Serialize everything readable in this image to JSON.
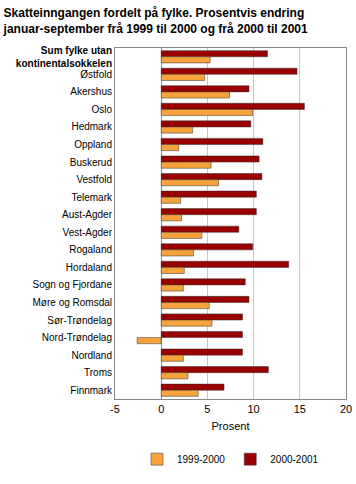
{
  "chart_data": {
    "type": "bar",
    "orientation": "horizontal",
    "title": "Skatteinngangen fordelt på fylke. Prosentvis endring januar-september frå 1999 til 2000 og frå 2000 til 2001",
    "x_label": "Prosent",
    "categories": [
      "Sum fylke utan kontinentalsokkelen",
      "Østfold",
      "Akershus",
      "Oslo",
      "Hedmark",
      "Oppland",
      "Buskerud",
      "Vestfold",
      "Telemark",
      "Aust-Agder",
      "Vest-Agder",
      "Rogaland",
      "Hordaland",
      "Sogn og Fjordane",
      "Møre og Romsdal",
      "Sør-Trøndelag",
      "Nord-Trøndelag",
      "Nordland",
      "Troms",
      "Finnmark"
    ],
    "series": [
      {
        "name": "1999-2000",
        "color": "#f7a33c",
        "values": [
          5.3,
          4.7,
          7.4,
          9.9,
          3.4,
          1.9,
          5.4,
          6.2,
          2.1,
          2.2,
          4.4,
          3.5,
          2.5,
          2.4,
          5.2,
          5.5,
          -2.6,
          2.4,
          2.9,
          4.0
        ]
      },
      {
        "name": "2000-2001",
        "color": "#990000",
        "values": [
          11.5,
          14.7,
          9.5,
          15.5,
          9.7,
          11.0,
          10.6,
          10.9,
          10.3,
          10.3,
          8.4,
          9.9,
          13.8,
          9.1,
          9.5,
          8.8,
          8.8,
          8.8,
          11.6,
          6.8
        ]
      }
    ],
    "xlim": [
      -5,
      20
    ],
    "xticks": [
      -5,
      0,
      5,
      10,
      15,
      20
    ],
    "grid": true,
    "legend": "bottom"
  }
}
